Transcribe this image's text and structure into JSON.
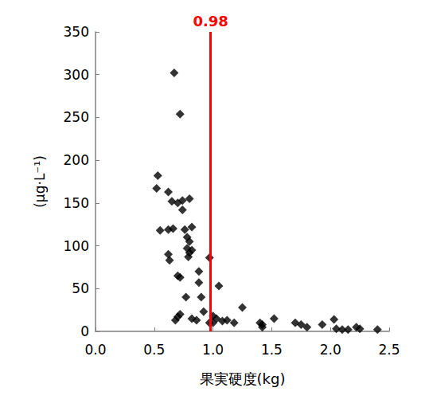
{
  "chart_data": {
    "type": "scatter",
    "x_label": "果実硬度(kg)",
    "y_label": "(μg·L⁻¹)",
    "color": "#000000",
    "marker": "diamond",
    "grid": false,
    "xlim": [
      0,
      2.5
    ],
    "xticks": [
      {
        "value": 0,
        "label": "0.0"
      },
      {
        "value": 0.5,
        "label": "0.5"
      },
      {
        "value": 1,
        "label": "1.0"
      },
      {
        "value": 1.5,
        "label": "1.5"
      },
      {
        "value": 2,
        "label": "2.0"
      },
      {
        "value": 2.5,
        "label": "2.5"
      }
    ],
    "ylim": [
      0,
      350
    ],
    "yticks": [
      0,
      50,
      100,
      150,
      200,
      250,
      300,
      350
    ],
    "annotation": {
      "x": 0.98,
      "label": "0.98",
      "color": "#ff0000"
    },
    "x": [
      0.67,
      0.72,
      0.53,
      0.52,
      0.62,
      0.65,
      0.7,
      0.74,
      0.8,
      0.74,
      0.55,
      0.62,
      0.66,
      0.76,
      0.82,
      0.78,
      0.8,
      0.62,
      0.63,
      0.78,
      0.8,
      0.79,
      0.82,
      0.7,
      0.72,
      0.88,
      0.88,
      0.97,
      1.05,
      0.77,
      0.9,
      0.68,
      0.7,
      0.72,
      0.82,
      0.86,
      0.92,
      0.97,
      1.0,
      1.03,
      1.08,
      1.12,
      1.18,
      1.25,
      1.4,
      1.42,
      1.52,
      1.7,
      1.75,
      1.8,
      1.93,
      2.03,
      2.05,
      2.1,
      2.15,
      2.22,
      2.25,
      2.4,
      1.0,
      1.42
    ],
    "values": [
      302,
      254,
      182,
      167,
      163,
      152,
      150,
      153,
      155,
      142,
      118,
      119,
      120,
      119,
      122,
      110,
      105,
      90,
      83,
      97,
      92,
      87,
      95,
      65,
      63,
      70,
      57,
      86,
      53,
      40,
      40,
      13,
      17,
      20,
      15,
      13,
      23,
      10,
      18,
      15,
      12,
      13,
      10,
      28,
      10,
      5,
      15,
      10,
      8,
      5,
      8,
      14,
      3,
      2,
      2,
      5,
      3,
      2,
      10,
      8
    ]
  }
}
